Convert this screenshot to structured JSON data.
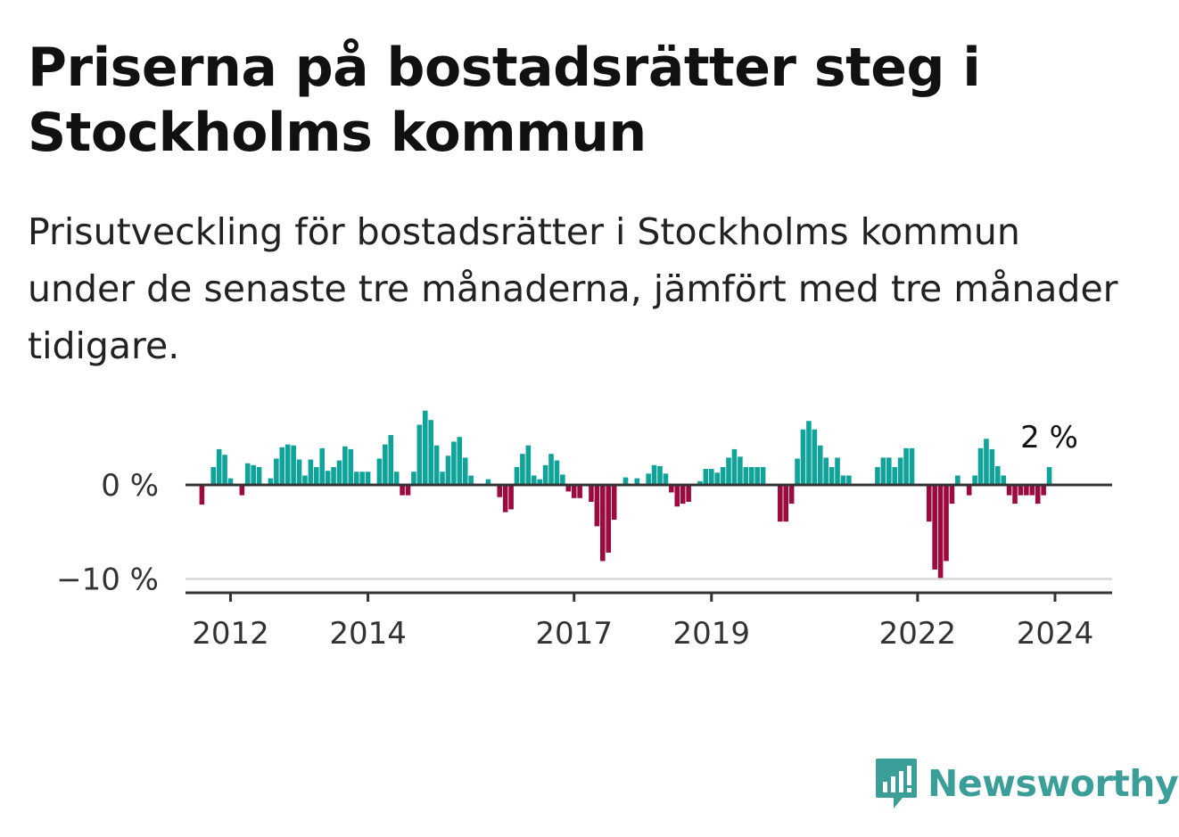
{
  "title": "Priserna på bostadsrätter steg i Stockholms kommun",
  "subtitle": "Prisutveckling för bostadsrätter i Stockholms kommun under de senaste tre månaderna, jämfört med tre månader tidigare.",
  "brand": {
    "name": "Newsworthy",
    "icon": "newsworthy-logo-icon",
    "color": "#3b9e98"
  },
  "colors": {
    "positive": "#10a39a",
    "negative": "#9b0b40",
    "axis": "#333333",
    "grid": "#dddddd"
  },
  "chart_data": {
    "type": "bar",
    "x_start": "2011-08",
    "frequency": "monthly",
    "x_tick_labels": [
      "2012",
      "2014",
      "2017",
      "2019",
      "2022",
      "2024"
    ],
    "x_tick_positions": [
      "2012-01",
      "2014-01",
      "2017-01",
      "2019-01",
      "2022-01",
      "2024-01"
    ],
    "y_tick_labels": [
      "0 %",
      "−10 %"
    ],
    "y_ticks": [
      0,
      -10
    ],
    "ylim": [
      -11,
      8.5
    ],
    "unit": "%",
    "last_value_label": "2 %",
    "values": [
      -2.1,
      0,
      1.9,
      3.8,
      3.2,
      0.7,
      0,
      -1.1,
      2.3,
      2.1,
      1.9,
      0,
      0.7,
      2.8,
      4.0,
      4.3,
      4.2,
      2.7,
      1.0,
      2.7,
      1.9,
      3.9,
      1.5,
      1.9,
      2.6,
      4.1,
      3.8,
      1.4,
      1.4,
      1.4,
      0,
      2.8,
      4.3,
      5.3,
      1.4,
      -1.1,
      -1.1,
      1.4,
      6.4,
      7.9,
      6.9,
      4.2,
      1.4,
      3.1,
      4.6,
      5.1,
      2.9,
      1.0,
      0,
      0,
      0.6,
      0,
      -1.3,
      -2.9,
      -2.6,
      1.9,
      3.3,
      4.2,
      1.0,
      0.6,
      2.1,
      3.3,
      2.6,
      1.1,
      -0.7,
      -1.4,
      -1.4,
      0,
      -1.8,
      -4.4,
      -8.1,
      -7.2,
      -3.7,
      0,
      0.8,
      0,
      0.7,
      0,
      1.2,
      2.1,
      2.0,
      1.2,
      -0.8,
      -2.3,
      -2.0,
      -1.8,
      0,
      0.4,
      1.7,
      1.7,
      1.3,
      1.9,
      2.9,
      3.8,
      3.0,
      1.9,
      1.9,
      1.9,
      1.9,
      0,
      0,
      -3.9,
      -3.9,
      -2.0,
      2.8,
      5.9,
      6.8,
      5.9,
      4.2,
      2.9,
      1.9,
      2.9,
      1.0,
      1.0,
      0,
      0,
      0,
      0,
      1.9,
      2.9,
      2.9,
      1.9,
      2.9,
      3.9,
      3.9,
      0,
      0,
      -3.9,
      -9.0,
      -9.9,
      -8.1,
      -2.0,
      1.0,
      0,
      -1.1,
      1.0,
      3.9,
      4.9,
      3.8,
      2.0,
      1.0,
      -1.1,
      -2.0,
      -1.1,
      -1.1,
      -1.1,
      -2.0,
      -1.1,
      1.9
    ]
  }
}
